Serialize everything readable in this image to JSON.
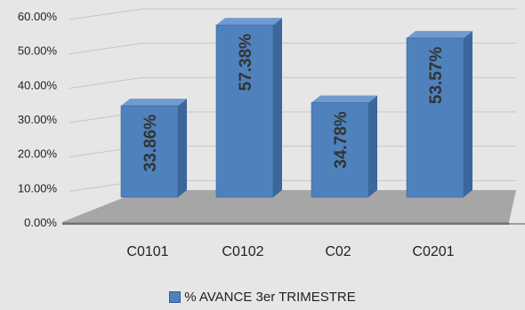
{
  "chart_data": {
    "type": "bar",
    "categories": [
      "C0101",
      "C0102",
      "C02",
      "C0201"
    ],
    "series": [
      {
        "name": "% AVANCE 3er TRIMESTRE",
        "values": [
          33.86,
          57.38,
          34.78,
          53.57
        ]
      }
    ],
    "data_labels": [
      "33.86%",
      "57.38%",
      "34.78%",
      "53.57%"
    ],
    "y_ticks": [
      "0.00%",
      "10.00%",
      "20.00%",
      "30.00%",
      "40.00%",
      "50.00%",
      "60.00%"
    ],
    "ylim": [
      0,
      60
    ],
    "grid": true,
    "legend_position": "bottom",
    "style": "3d-column",
    "colors": {
      "bar_front": "#4f81bd",
      "bar_side": "#3b679c",
      "bar_top": "#6f9bd1",
      "floor": "#a6a6a6",
      "background": "#e6e6e6"
    }
  }
}
